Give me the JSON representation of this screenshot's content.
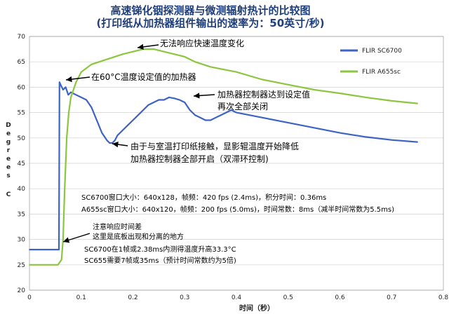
{
  "chart_data": {
    "type": "line",
    "title_lines": [
      "高速锑化铟探测器与微测辐射热计的比较图",
      "(打印纸从加热器组件输出的速率为：50英寸/秒)"
    ],
    "xlabel": "时间（秒）",
    "ylabel_letters": [
      "D",
      "e",
      "g",
      "r",
      "e",
      "e",
      "s",
      "",
      "C"
    ],
    "xlim": [
      0,
      0.8
    ],
    "ylim": [
      20,
      70
    ],
    "x_ticks": [
      "0",
      "0.1",
      "0.2",
      "0.3",
      "0.4",
      "0.5",
      "0.6",
      "0.7",
      "0.8"
    ],
    "y_ticks": [
      "20",
      "25",
      "30",
      "35",
      "40",
      "45",
      "50",
      "55",
      "60",
      "65",
      "70"
    ],
    "grid": "horizontal",
    "legend_position": "right",
    "series": [
      {
        "name": "FLIR SC6700",
        "color": "#3d63c4",
        "points": [
          [
            0.0,
            28.0
          ],
          [
            0.055,
            28.0
          ],
          [
            0.057,
            28.0
          ],
          [
            0.058,
            61.0
          ],
          [
            0.06,
            60.5
          ],
          [
            0.065,
            59.5
          ],
          [
            0.07,
            60.0
          ],
          [
            0.075,
            58.5
          ],
          [
            0.08,
            59.0
          ],
          [
            0.09,
            58.5
          ],
          [
            0.1,
            58.0
          ],
          [
            0.11,
            57.5
          ],
          [
            0.12,
            56.0
          ],
          [
            0.13,
            53.5
          ],
          [
            0.14,
            51.0
          ],
          [
            0.15,
            49.5
          ],
          [
            0.155,
            49.0
          ],
          [
            0.16,
            49.0
          ],
          [
            0.165,
            49.5
          ],
          [
            0.17,
            50.5
          ],
          [
            0.18,
            51.5
          ],
          [
            0.19,
            52.5
          ],
          [
            0.2,
            53.5
          ],
          [
            0.21,
            54.5
          ],
          [
            0.22,
            55.5
          ],
          [
            0.23,
            56.5
          ],
          [
            0.24,
            57.0
          ],
          [
            0.25,
            57.5
          ],
          [
            0.26,
            57.5
          ],
          [
            0.27,
            58.0
          ],
          [
            0.28,
            57.8
          ],
          [
            0.29,
            57.5
          ],
          [
            0.3,
            57.0
          ],
          [
            0.31,
            55.5
          ],
          [
            0.32,
            54.5
          ],
          [
            0.33,
            54.0
          ],
          [
            0.34,
            53.5
          ],
          [
            0.35,
            53.5
          ],
          [
            0.36,
            54.0
          ],
          [
            0.37,
            54.5
          ],
          [
            0.38,
            55.0
          ],
          [
            0.39,
            55.5
          ],
          [
            0.4,
            55.0
          ],
          [
            0.45,
            54.0
          ],
          [
            0.5,
            53.0
          ],
          [
            0.55,
            52.0
          ],
          [
            0.6,
            51.0
          ],
          [
            0.65,
            50.2
          ],
          [
            0.7,
            49.6
          ],
          [
            0.75,
            49.2
          ]
        ]
      },
      {
        "name": "FLIR A655sc",
        "color": "#8cc63f",
        "points": [
          [
            0.0,
            25.0
          ],
          [
            0.055,
            25.0
          ],
          [
            0.062,
            26.0
          ],
          [
            0.065,
            30.0
          ],
          [
            0.068,
            40.0
          ],
          [
            0.072,
            50.0
          ],
          [
            0.076,
            55.0
          ],
          [
            0.08,
            58.0
          ],
          [
            0.09,
            61.0
          ],
          [
            0.1,
            63.0
          ],
          [
            0.12,
            64.5
          ],
          [
            0.15,
            65.5
          ],
          [
            0.18,
            66.5
          ],
          [
            0.2,
            67.0
          ],
          [
            0.22,
            67.5
          ],
          [
            0.24,
            67.5
          ],
          [
            0.26,
            67.0
          ],
          [
            0.28,
            66.5
          ],
          [
            0.3,
            66.0
          ],
          [
            0.32,
            65.0
          ],
          [
            0.35,
            64.0
          ],
          [
            0.4,
            63.0
          ],
          [
            0.45,
            61.5
          ],
          [
            0.5,
            60.5
          ],
          [
            0.55,
            59.5
          ],
          [
            0.6,
            58.8
          ],
          [
            0.65,
            58.0
          ],
          [
            0.7,
            57.3
          ],
          [
            0.75,
            56.8
          ]
        ]
      }
    ],
    "annotations": [
      {
        "text": "无法响应快速温度变化",
        "arrow_to": [
          0.2,
          67.5
        ]
      },
      {
        "text": "在60°C温度设定值的加热器",
        "arrow_to": [
          0.062,
          60.0
        ]
      },
      {
        "text": "加热器控制器达到设定值",
        "arrow_to": [
          0.29,
          57.5
        ]
      },
      {
        "text": "再次全部关闭"
      },
      {
        "text": "由于与室温打印纸接触，显影辊温度开始降低",
        "arrow_to": [
          0.16,
          49.0
        ]
      },
      {
        "text": "加热器控制器全部开启（双滞环控制)"
      },
      {
        "text": "SC6700窗口大小：640x128，帧频：420 fps (2.4ms)，积分时间：0.36ms"
      },
      {
        "text": "A655sc窗口大小：640x120，帧频：200 fps (5.0ms)，时间常数：8ms（减半时间常数为5.5ms)"
      },
      {
        "text": "注意响应时间差"
      },
      {
        "text": "这里是底板出现和分离的地方",
        "arrow_to": [
          0.06,
          30.0
        ]
      },
      {
        "text": "SC6700在1帧或2.38ms内测得温度升高33.3°C"
      },
      {
        "text": "SC655需要7帧或35ms（预计时间常数约为5倍)"
      }
    ]
  }
}
